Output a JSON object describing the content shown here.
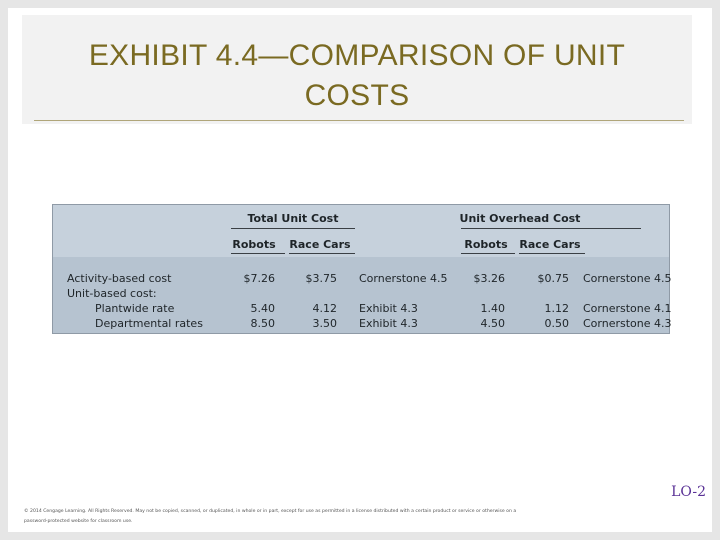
{
  "slide": {
    "title_line1": "EXHIBIT 4.4—COMPARISON OF UNIT",
    "title_line2": "COSTS"
  },
  "table": {
    "group_headers": [
      "Total Unit Cost",
      "Unit Overhead Cost"
    ],
    "subheaders": [
      "Robots",
      "Race Cars",
      "Robots",
      "Race Cars"
    ],
    "rows": [
      {
        "label": "Activity-based cost",
        "total_robots": "$7.26",
        "total_racecars": "$3.75",
        "source1": "Cornerstone 4.5",
        "oh_robots": "$3.26",
        "oh_racecars": "$0.75",
        "source2": "Cornerstone 4.5"
      },
      {
        "label": "Unit-based cost:",
        "total_robots": "",
        "total_racecars": "",
        "source1": "",
        "oh_robots": "",
        "oh_racecars": "",
        "source2": ""
      },
      {
        "label": "Plantwide rate",
        "total_robots": "5.40",
        "total_racecars": "4.12",
        "source1": "Exhibit 4.3",
        "oh_robots": "1.40",
        "oh_racecars": "1.12",
        "source2": "Cornerstone 4.1"
      },
      {
        "label": "Departmental rates",
        "total_robots": "8.50",
        "total_racecars": "3.50",
        "source1": "Exhibit 4.3",
        "oh_robots": "4.50",
        "oh_racecars": "0.50",
        "source2": "Cornerstone 4.3"
      }
    ]
  },
  "footer": {
    "lo_label": "LO-2",
    "copyright_line1": "© 2014 Cengage Learning. All Rights Reserved. May not be copied, scanned, or duplicated, in whole or in part, except for use as permitted in a license distributed with a certain product or service or otherwise on a",
    "copyright_line2": "password-protected website for classroom use."
  }
}
